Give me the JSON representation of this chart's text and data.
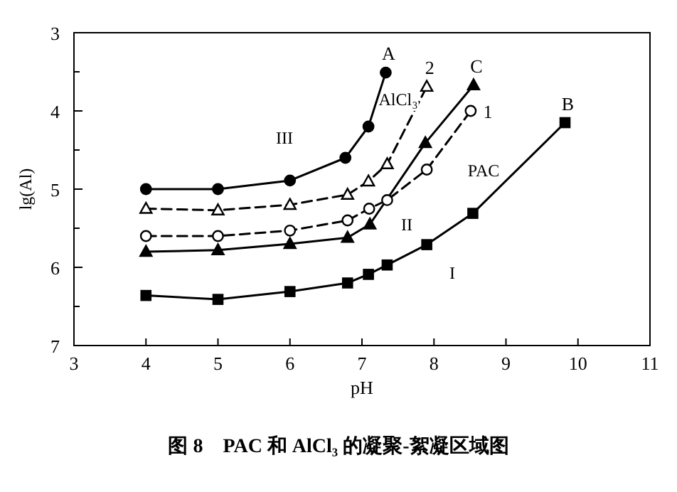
{
  "chart_data": {
    "type": "line",
    "xlabel": "pH",
    "ylabel": "lg(Al)",
    "xlim": [
      3,
      11
    ],
    "ylim": [
      7,
      3
    ],
    "xticks": [
      3,
      4,
      5,
      6,
      7,
      8,
      9,
      10,
      11
    ],
    "yticks": [
      3,
      {
        "value": 3.5,
        "label": null
      },
      4,
      {
        "value": 4.5,
        "label": null
      },
      5,
      {
        "value": 5.5,
        "label": null
      },
      6,
      {
        "value": 6.5,
        "label": null
      },
      7
    ],
    "series": [
      {
        "name": "A",
        "color": "#000000",
        "marker": "circle",
        "line_style": "solid",
        "x": [
          4,
          5,
          6,
          6.77,
          7.09,
          7.33
        ],
        "values": [
          5.0,
          5.0,
          4.89,
          4.6,
          4.2,
          3.51
        ]
      },
      {
        "name": "2",
        "color": "#000000",
        "marker": "triangle",
        "line_style": "dashed",
        "x": [
          4,
          5,
          6,
          6.8,
          7.09,
          7.35,
          7.9
        ],
        "values": [
          5.25,
          5.27,
          5.2,
          5.07,
          4.9,
          4.68,
          3.69
        ]
      },
      {
        "name": "C",
        "color": "#000000",
        "marker": "triangle",
        "line_style": "solid",
        "x": [
          4,
          5,
          6,
          6.8,
          7.11,
          7.88,
          8.55
        ],
        "values": [
          5.8,
          5.78,
          5.7,
          5.62,
          5.45,
          4.41,
          3.67
        ]
      },
      {
        "name": "1",
        "color": "#000000",
        "marker": "circle",
        "line_style": "dashed",
        "x": [
          4,
          5,
          6,
          6.8,
          7.1,
          7.35,
          7.9,
          8.51
        ],
        "values": [
          5.6,
          5.6,
          5.53,
          5.4,
          5.25,
          5.14,
          4.75,
          4.0
        ]
      },
      {
        "name": "B",
        "color": "#000000",
        "marker": "square",
        "line_style": "solid",
        "x": [
          4,
          5,
          6,
          6.8,
          7.09,
          7.35,
          7.9,
          8.54,
          9.82
        ],
        "values": [
          6.36,
          6.41,
          6.31,
          6.2,
          6.09,
          5.97,
          5.71,
          5.31,
          4.15
        ]
      }
    ],
    "annotations": [
      "III",
      "AlCl₃",
      "PAC",
      "II",
      "I",
      "图 8　PAC 和 AlCl₃ 的凝聚-絮凝区域图"
    ]
  }
}
